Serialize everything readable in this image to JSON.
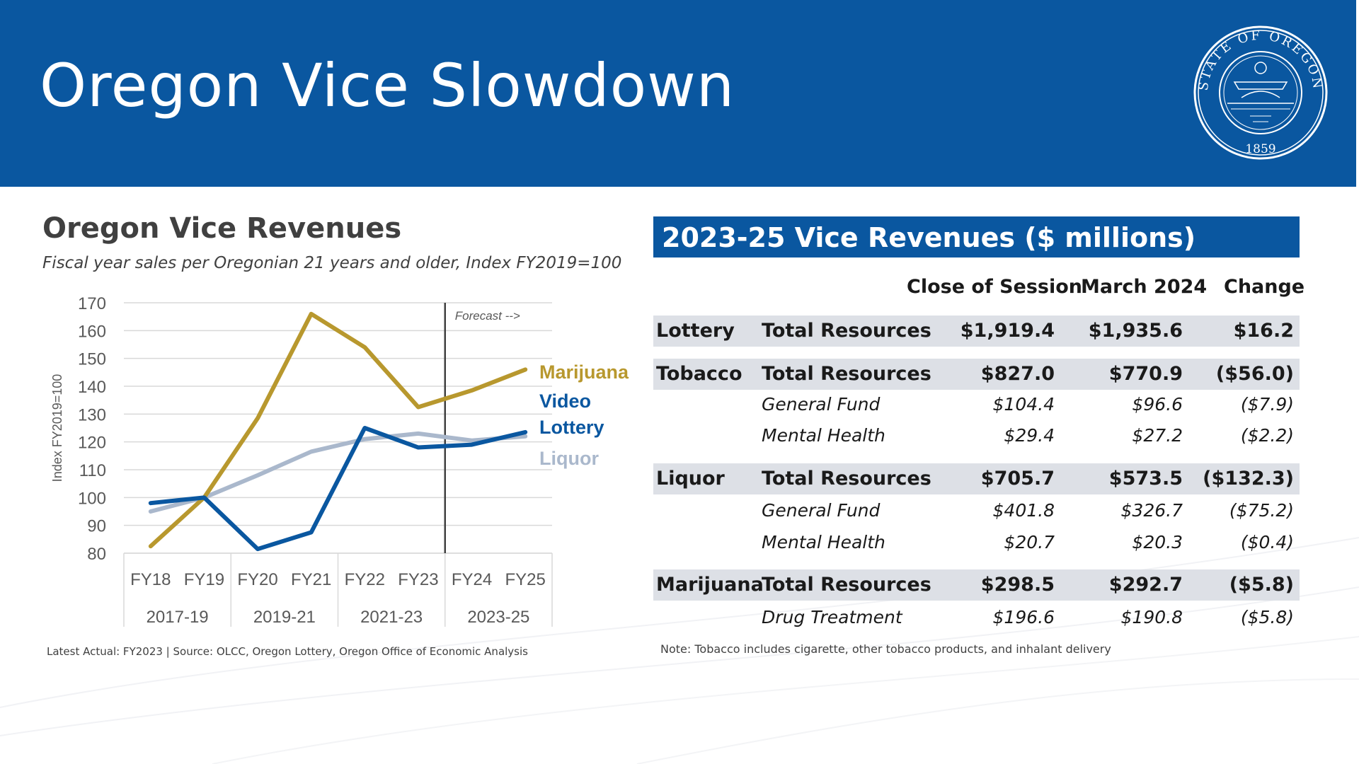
{
  "header": {
    "title": "Oregon Vice Slowdown",
    "seal_text_top": "STATE OF OREGON",
    "seal_year": "1859",
    "colors": {
      "header_bg": "#0a57a0"
    }
  },
  "chart_data": {
    "type": "line",
    "title": "Oregon Vice Revenues",
    "subtitle": "Fiscal year sales per Oregonian 21 years and older, Index FY2019=100",
    "ylabel": "Index FY2019=100",
    "xlabel": "",
    "ylim": [
      80,
      170
    ],
    "yticks": [
      80,
      90,
      100,
      110,
      120,
      130,
      140,
      150,
      160,
      170
    ],
    "categories": [
      "FY18",
      "FY19",
      "FY20",
      "FY21",
      "FY22",
      "FY23",
      "FY24",
      "FY25"
    ],
    "groups": [
      {
        "label": "2017-19",
        "span": [
          "FY18",
          "FY19"
        ]
      },
      {
        "label": "2019-21",
        "span": [
          "FY20",
          "FY21"
        ]
      },
      {
        "label": "2021-23",
        "span": [
          "FY22",
          "FY23"
        ]
      },
      {
        "label": "2023-25",
        "span": [
          "FY24",
          "FY25"
        ]
      }
    ],
    "forecast_label": "Forecast -->",
    "forecast_start_after": "FY23",
    "grid": true,
    "legend": "right",
    "series": [
      {
        "name": "Marijuana",
        "color": "#b8982e",
        "values": [
          82.5,
          100,
          128.5,
          166,
          154,
          132.5,
          138.5,
          146
        ]
      },
      {
        "name_lines": [
          "Video",
          "Lottery"
        ],
        "color": "#0a57a0",
        "values": [
          98,
          100,
          81.5,
          87.5,
          125,
          118,
          119,
          123.5
        ]
      },
      {
        "name": "Liquor",
        "color": "#aab8cc",
        "values": [
          95,
          100,
          108,
          116.5,
          121,
          123,
          120.5,
          122
        ]
      }
    ],
    "source_note": "Latest Actual: FY2023  |  Source: OLCC, Oregon Lottery, Oregon Office of Economic Analysis"
  },
  "table": {
    "title": "2023-25 Vice Revenues ($ millions)",
    "columns": [
      "Close of Session",
      "March 2024",
      "Change"
    ],
    "rows": [
      {
        "category": "Lottery",
        "item": "Total Resources",
        "close": "$1,919.4",
        "march": "$1,935.6",
        "change": "$16.2"
      },
      {
        "category": "Tobacco",
        "item": "Total Resources",
        "close": "$827.0",
        "march": "$770.9",
        "change": "($56.0)"
      },
      {
        "category": "",
        "item": "General Fund",
        "close": "$104.4",
        "march": "$96.6",
        "change": "($7.9)"
      },
      {
        "category": "",
        "item": "Mental Health",
        "close": "$29.4",
        "march": "$27.2",
        "change": "($2.2)"
      },
      {
        "category": "Liquor",
        "item": "Total Resources",
        "close": "$705.7",
        "march": "$573.5",
        "change": "($132.3)"
      },
      {
        "category": "",
        "item": "General Fund",
        "close": "$401.8",
        "march": "$326.7",
        "change": "($75.2)"
      },
      {
        "category": "",
        "item": "Mental Health",
        "close": "$20.7",
        "march": "$20.3",
        "change": "($0.4)"
      },
      {
        "category": "Marijuana",
        "item": "Total Resources",
        "close": "$298.5",
        "march": "$292.7",
        "change": "($5.8)"
      },
      {
        "category": "",
        "item": "Drug Treatment",
        "close": "$196.6",
        "march": "$190.8",
        "change": "($5.8)"
      }
    ],
    "note": "Note: Tobacco includes cigarette, other tobacco products, and inhalant delivery"
  }
}
